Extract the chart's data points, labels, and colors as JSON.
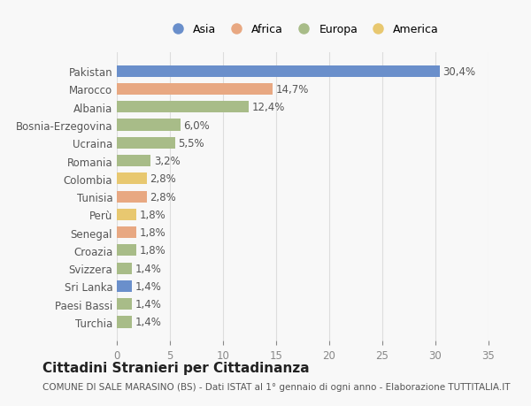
{
  "categories": [
    "Pakistan",
    "Marocco",
    "Albania",
    "Bosnia-Erzegovina",
    "Ucraina",
    "Romania",
    "Colombia",
    "Tunisia",
    "Perù",
    "Senegal",
    "Croazia",
    "Svizzera",
    "Sri Lanka",
    "Paesi Bassi",
    "Turchia"
  ],
  "values": [
    30.4,
    14.7,
    12.4,
    6.0,
    5.5,
    3.2,
    2.8,
    2.8,
    1.8,
    1.8,
    1.8,
    1.4,
    1.4,
    1.4,
    1.4
  ],
  "labels": [
    "30,4%",
    "14,7%",
    "12,4%",
    "6,0%",
    "5,5%",
    "3,2%",
    "2,8%",
    "2,8%",
    "1,8%",
    "1,8%",
    "1,8%",
    "1,4%",
    "1,4%",
    "1,4%",
    "1,4%"
  ],
  "continents": [
    "Asia",
    "Africa",
    "Europa",
    "Europa",
    "Europa",
    "Europa",
    "America",
    "Africa",
    "America",
    "Africa",
    "Europa",
    "Europa",
    "Asia",
    "Europa",
    "Europa"
  ],
  "continent_colors": {
    "Asia": "#6a8fcb",
    "Africa": "#e8a882",
    "Europa": "#a8bc88",
    "America": "#e8c870"
  },
  "legend_order": [
    "Asia",
    "Africa",
    "Europa",
    "America"
  ],
  "title": "Cittadini Stranieri per Cittadinanza",
  "subtitle": "COMUNE DI SALE MARASINO (BS) - Dati ISTAT al 1° gennaio di ogni anno - Elaborazione TUTTITALIA.IT",
  "xlim": [
    0,
    35
  ],
  "xticks": [
    0,
    5,
    10,
    15,
    20,
    25,
    30,
    35
  ],
  "bg_color": "#f8f8f8",
  "grid_color": "#dddddd",
  "bar_height": 0.65,
  "label_fontsize": 8.5,
  "tick_fontsize": 8.5,
  "title_fontsize": 11,
  "subtitle_fontsize": 7.5
}
